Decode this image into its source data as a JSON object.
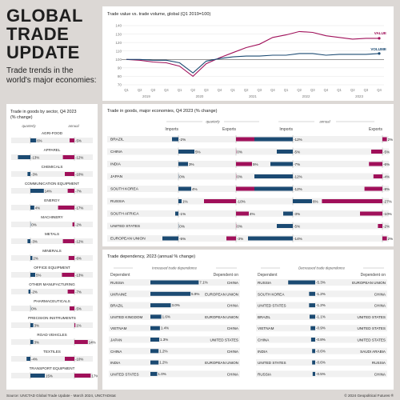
{
  "header": {
    "title_lines": [
      "GLOBAL",
      "TRADE",
      "UPDATE"
    ],
    "subtitle": "Trade trends in the world's major economies:"
  },
  "colors": {
    "value": "#a0105a",
    "volume": "#1b4a72",
    "panel_bg": "#ffffff",
    "page_bg": "#dcd8d5"
  },
  "line_chart": {
    "title": "Trade value vs. trade volume, global (Q1 2019=100)",
    "yticks": [
      70,
      80,
      90,
      100,
      110,
      120,
      130,
      140
    ],
    "quarters": [
      "Q1",
      "Q2",
      "Q3",
      "Q4",
      "Q1",
      "Q2",
      "Q3",
      "Q4",
      "Q1",
      "Q2",
      "Q3",
      "Q4",
      "Q1",
      "Q2",
      "Q3",
      "Q4",
      "Q1",
      "Q2",
      "Q3",
      "Q4"
    ],
    "years": [
      "2019",
      "2020",
      "2021",
      "2022",
      "2023"
    ],
    "series_labels": {
      "value": "VALUE",
      "volume": "VOLUME"
    }
  },
  "chart_data": [
    {
      "type": "line",
      "title": "Trade value vs. trade volume, global (Q1 2019=100)",
      "ylim": [
        70,
        140
      ],
      "x": [
        "2019 Q1",
        "2019 Q2",
        "2019 Q3",
        "2019 Q4",
        "2020 Q1",
        "2020 Q2",
        "2020 Q3",
        "2020 Q4",
        "2021 Q1",
        "2021 Q2",
        "2021 Q3",
        "2021 Q4",
        "2022 Q1",
        "2022 Q2",
        "2022 Q3",
        "2022 Q4",
        "2023 Q1",
        "2023 Q2",
        "2023 Q3",
        "2023 Q4"
      ],
      "series": [
        {
          "name": "VALUE",
          "values": [
            100,
            99,
            97,
            96,
            92,
            80,
            95,
            102,
            108,
            114,
            118,
            126,
            129,
            133,
            132,
            128,
            126,
            124,
            125,
            125
          ]
        },
        {
          "name": "VOLUME",
          "values": [
            100,
            100,
            99,
            99,
            96,
            84,
            98,
            101,
            103,
            104,
            104,
            105,
            105,
            107,
            107,
            105,
            106,
            106,
            106,
            107
          ]
        }
      ]
    },
    {
      "type": "bar",
      "title": "Trade in goods by sector, Q4 2023 (% change)",
      "headers": {
        "quarterly": "quarterly",
        "annual": "annual"
      },
      "rows": [
        {
          "label": "AGRI-FOOD",
          "quarterly": 6,
          "annual": -5
        },
        {
          "label": "APPAREL",
          "quarterly": -13,
          "annual": -12
        },
        {
          "label": "CHEMICALS",
          "quarterly": -3,
          "annual": -10
        },
        {
          "label": "COMMUNICATION EQUIPMENT",
          "quarterly": 14,
          "annual": -7
        },
        {
          "label": "ENERGY",
          "quarterly": 4,
          "annual": -17
        },
        {
          "label": "MACHINERY",
          "quarterly": 0,
          "annual": -2
        },
        {
          "label": "METALS",
          "quarterly": -3,
          "annual": -12
        },
        {
          "label": "MINERALS",
          "quarterly": 2,
          "annual": -6
        },
        {
          "label": "OFFICE EQUIPMENT",
          "quarterly": 5,
          "annual": -13
        },
        {
          "label": "OTHER MANUFACTURING",
          "quarterly": -2,
          "annual": -7
        },
        {
          "label": "PHARMACEUTICALS",
          "quarterly": 0,
          "annual": -5
        },
        {
          "label": "PRECISION INSTRUMENTS",
          "quarterly": 3,
          "annual": 1
        },
        {
          "label": "ROAD VEHICLES",
          "quarterly": 3,
          "annual": 14
        },
        {
          "label": "TEXTILES",
          "quarterly": -4,
          "annual": -10
        },
        {
          "label": "TRANSPORT EQUIPMENT",
          "quarterly": 15,
          "annual": 17
        }
      ]
    },
    {
      "type": "bar",
      "title": "Trade in goods, major economies, Q4 2023 (% change)",
      "headers": {
        "quarterly": "quarterly",
        "annual": "annual",
        "imports": "Imports",
        "exports": "Exports"
      },
      "rows": [
        {
          "label": "BRAZIL",
          "q_imp": -2,
          "q_exp": 8,
          "a_imp": -12,
          "a_exp": 2
        },
        {
          "label": "CHINA",
          "q_imp": 5,
          "q_exp": 0,
          "a_imp": -5,
          "a_exp": -5
        },
        {
          "label": "INDIA",
          "q_imp": 3,
          "q_exp": 5,
          "a_imp": -7,
          "a_exp": -6
        },
        {
          "label": "JAPAN",
          "q_imp": 0,
          "q_exp": 0,
          "a_imp": -12,
          "a_exp": -4
        },
        {
          "label": "SOUTH KOREA",
          "q_imp": 4,
          "q_exp": 6,
          "a_imp": -12,
          "a_exp": -8
        },
        {
          "label": "RUSSIA",
          "q_imp": 1,
          "q_exp": -10,
          "a_imp": 6,
          "a_exp": -27
        },
        {
          "label": "SOUTH AFRICA",
          "q_imp": -1,
          "q_exp": 4,
          "a_imp": -3,
          "a_exp": -10
        },
        {
          "label": "UNITED STATES",
          "q_imp": 0,
          "q_exp": 0,
          "a_imp": -5,
          "a_exp": -2
        },
        {
          "label": "EUROPEAN UNION",
          "q_imp": -5,
          "q_exp": -3,
          "a_imp": -14,
          "a_exp": 2
        }
      ]
    },
    {
      "type": "bar",
      "title": "Trade dependency, 2023 (annual % change)",
      "groups": [
        {
          "name": "Increased trade dependence",
          "headers": [
            "Dependent",
            "Dependent on"
          ],
          "rows": [
            {
              "dependent": "RUSSIA",
              "value": 7.1,
              "on": "CHINA"
            },
            {
              "dependent": "UKRAINE",
              "value": 5.9,
              "on": "EUROPEAN UNION"
            },
            {
              "dependent": "BRAZIL",
              "value": 3.0,
              "on": "CHINA"
            },
            {
              "dependent": "UNITED KINGDOM",
              "value": 1.6,
              "on": "EUROPEAN UNION"
            },
            {
              "dependent": "VIETNAM",
              "value": 1.4,
              "on": "CHINA"
            },
            {
              "dependent": "JAPAN",
              "value": 1.3,
              "on": "UNITED STATES"
            },
            {
              "dependent": "CHINA",
              "value": 1.2,
              "on": "CHINA"
            },
            {
              "dependent": "INDIA",
              "value": 1.2,
              "on": "EUROPEAN UNION"
            },
            {
              "dependent": "UNITED STATES",
              "value": 1.0,
              "on": "CHINA"
            }
          ]
        },
        {
          "name": "Decreased trade dependence",
          "headers": [
            "Dependent",
            "Dependent on"
          ],
          "rows": [
            {
              "dependent": "RUSSIA",
              "value": -5.3,
              "on": "EUROPEAN UNION"
            },
            {
              "dependent": "SOUTH KOREA",
              "value": -1.2,
              "on": "CHINA"
            },
            {
              "dependent": "UNITED STATES",
              "value": -1.2,
              "on": "CHINA"
            },
            {
              "dependent": "BRAZIL",
              "value": -1.1,
              "on": "UNITED STATES"
            },
            {
              "dependent": "VIETNAM",
              "value": -0.9,
              "on": "UNITED STATES"
            },
            {
              "dependent": "CHINA",
              "value": -0.8,
              "on": "UNITED STATES"
            },
            {
              "dependent": "INDIA",
              "value": -0.6,
              "on": "SAUDI ARABIA"
            },
            {
              "dependent": "UNITED STATES",
              "value": -0.6,
              "on": "RUSSIA"
            },
            {
              "dependent": "RUSSIA",
              "value": -0.5,
              "on": "CHINA"
            }
          ]
        }
      ]
    }
  ],
  "footer": {
    "source": "Source: UNCTAD Global Trade Update - March 2024, UNCTADstat",
    "copyright": "© 2024 Geopolitical Futures ®"
  }
}
